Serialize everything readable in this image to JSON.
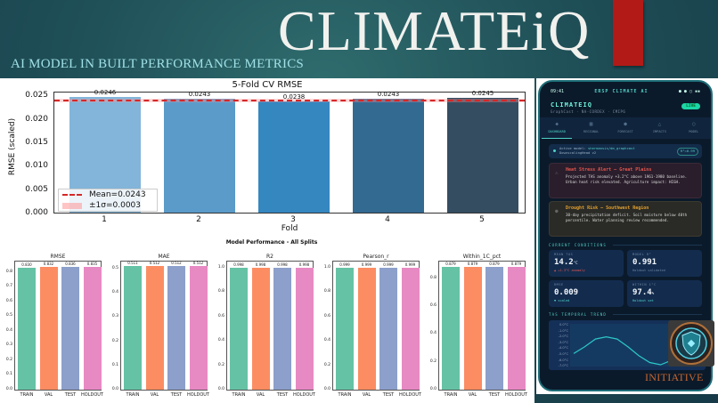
{
  "header": {
    "brand": "CLIMATEiQ",
    "subtitle": "AI MODEL IN BUILT PERFORMANCE METRICS",
    "accent_bar_color": "#b11a17"
  },
  "cv_chart": {
    "title": "5-Fold CV RMSE",
    "xlabel": "Fold",
    "ylabel": "RMSE (scaled)",
    "yticks": [
      "0.000",
      "0.005",
      "0.010",
      "0.015",
      "0.020",
      "0.025"
    ],
    "bars": [
      {
        "fold": "1",
        "value": 0.0246,
        "label": "0.0246",
        "color": "#82b5d9"
      },
      {
        "fold": "2",
        "value": 0.0243,
        "label": "0.0243",
        "color": "#5b9bc9"
      },
      {
        "fold": "3",
        "value": 0.0238,
        "label": "0.0238",
        "color": "#3587c0"
      },
      {
        "fold": "4",
        "value": 0.0243,
        "label": "0.0243",
        "color": "#336a92"
      },
      {
        "fold": "5",
        "value": 0.0245,
        "label": "0.0245",
        "color": "#354d61"
      }
    ],
    "legend": {
      "mean": "Mean=0.0243",
      "std": "±1σ=0.0003"
    }
  },
  "perf": {
    "title": "Model Performance - All Splits",
    "splits": [
      "TRAIN",
      "VAL",
      "TEST",
      "HOLDOUT"
    ],
    "colors": [
      "#66c2a5",
      "#fc8d62",
      "#8da0cb",
      "#e78ac3"
    ],
    "panels": [
      {
        "title": "RMSE",
        "labels": [
          "0.830",
          "0.832",
          "0.836",
          "0.835"
        ],
        "yticks": [
          "0.0",
          "0.1",
          "0.2",
          "0.3",
          "0.4",
          "0.5",
          "0.6",
          "0.7",
          "0.8"
        ]
      },
      {
        "title": "MAE",
        "labels": [
          "0.511",
          "0.512",
          "0.512",
          "0.512"
        ],
        "yticks": [
          "0.0",
          "0.1",
          "0.2",
          "0.3",
          "0.4",
          "0.5"
        ]
      },
      {
        "title": "R2",
        "labels": [
          "0.998",
          "0.998",
          "0.998",
          "0.998"
        ],
        "yticks": [
          "0.0",
          "0.2",
          "0.4",
          "0.6",
          "0.8",
          "1.0"
        ]
      },
      {
        "title": "Pearson_r",
        "labels": [
          "0.999",
          "0.999",
          "0.999",
          "0.999"
        ],
        "yticks": [
          "0.0",
          "0.2",
          "0.4",
          "0.6",
          "0.8",
          "1.0"
        ]
      },
      {
        "title": "Within_1C_pct",
        "labels": [
          "0.879",
          "0.879",
          "0.879",
          "0.879"
        ],
        "yticks": [
          "0.0",
          "0.2",
          "0.4",
          "0.6",
          "0.8"
        ]
      }
    ]
  },
  "phone": {
    "time": "09:41",
    "status_title": "ERSP CLIMATE AI",
    "app_title": "CLIMATEIQ",
    "app_subtitle": "GraphCast · NA-CORDEX · CMIP6",
    "live": "LIVE",
    "tabs": [
      {
        "label": "DASHBOARD",
        "icon": "◆"
      },
      {
        "label": "REGIONAL",
        "icon": "▦"
      },
      {
        "label": "FORECAST",
        "icon": "●"
      },
      {
        "label": "IMPACTS",
        "icon": "△"
      },
      {
        "label": "MODEL",
        "icon": "○"
      }
    ],
    "model_line1_prefix": "Active model: ",
    "model_line1_value": "shermansis/dm_graphcast",
    "model_line2": "DownscalingHead v2",
    "model_badge": "R²=0.99",
    "alerts": [
      {
        "title": "Heat Stress Alert — Great Plains",
        "body": "Projected TAS anomaly +3.2°C above 1961-1980 baseline. Urban heat risk elevated. Agriculture impact: HIGH."
      },
      {
        "title": "Drought Risk — Southwest Region",
        "body": "30-day precipitation deficit. Soil moisture below 40th percentile. Water planning review recommended."
      }
    ],
    "conditions_label": "CURRENT CONDITIONS",
    "metrics": [
      {
        "label": "MEAN TAS",
        "value": "14.2",
        "unit": "°C",
        "sub": "▲ +1.3°C anomaly",
        "sub_color": "#e4574e"
      },
      {
        "label": "MODEL R²",
        "value": "0.991",
        "unit": "",
        "sub": "Holdout validated",
        "sub_color": "#6b84a0"
      },
      {
        "label": "RMSE",
        "value": "0.009",
        "unit": "",
        "sub": "▼ scaled",
        "sub_color": "#4fd1c5"
      },
      {
        "label": "WITHIN 1°C",
        "value": "97.4",
        "unit": "%",
        "sub": "Holdout set",
        "sub_color": "#4fd1c5"
      }
    ],
    "trend_label": "TAS TEMPORAL TREND",
    "trend_yticks": [
      "0.0°C",
      "-1.0°C",
      "-2.0°C",
      "-3.0°C",
      "-4.0°C",
      "-5.0°C",
      "-6.0°C",
      "-7.0°C"
    ]
  },
  "footer": {
    "initiative": "INITIATIVE",
    "logo_icon": "shield-emblem-icon"
  },
  "chart_data": [
    {
      "type": "bar",
      "title": "5-Fold CV RMSE",
      "xlabel": "Fold",
      "ylabel": "RMSE (scaled)",
      "categories": [
        "1",
        "2",
        "3",
        "4",
        "5"
      ],
      "values": [
        0.0246,
        0.0243,
        0.0238,
        0.0243,
        0.0245
      ],
      "ylim": [
        0,
        0.026
      ],
      "annotations": {
        "mean_line": 0.0243,
        "std_band": 0.0003
      },
      "legend": [
        "Mean=0.0243",
        "±1σ=0.0003"
      ],
      "legend_position": "lower left"
    },
    {
      "type": "bar",
      "title": "Model Performance - All Splits",
      "categories": [
        "TRAIN",
        "VAL",
        "TEST",
        "HOLDOUT"
      ],
      "series": [
        {
          "name": "RMSE",
          "values": [
            0.83,
            0.832,
            0.836,
            0.835
          ]
        },
        {
          "name": "MAE",
          "values": [
            0.511,
            0.512,
            0.512,
            0.512
          ]
        },
        {
          "name": "R2",
          "values": [
            0.998,
            0.998,
            0.998,
            0.998
          ]
        },
        {
          "name": "Pearson_r",
          "values": [
            0.999,
            0.999,
            0.999,
            0.999
          ]
        },
        {
          "name": "Within_1C_pct",
          "values": [
            0.879,
            0.879,
            0.879,
            0.879
          ]
        }
      ]
    },
    {
      "type": "line",
      "title": "TAS TEMPORAL TREND",
      "ylabel": "°C",
      "ylim": [
        -7.0,
        0.0
      ],
      "x": [
        0,
        1,
        2,
        3,
        4,
        5,
        6,
        7,
        8,
        9,
        10
      ],
      "values": [
        -5.0,
        -3.8,
        -2.4,
        -2.0,
        -2.4,
        -3.8,
        -5.4,
        -6.6,
        -7.0,
        -6.2,
        -4.8
      ]
    }
  ]
}
